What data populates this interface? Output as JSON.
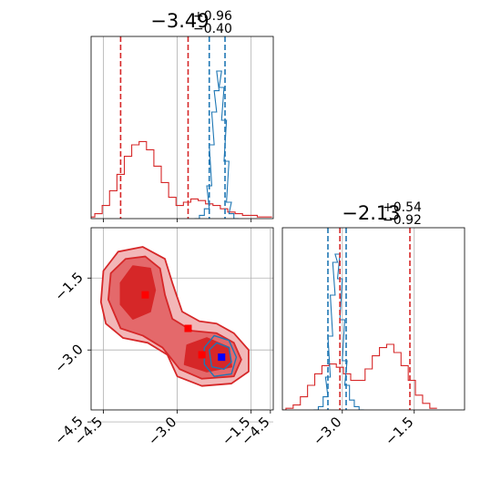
{
  "chart_data": {
    "type": "corner",
    "grid": true,
    "x_range": [
      -4.75,
      -1.05
    ],
    "y_range": [
      -4.25,
      -0.45
    ],
    "ticks": [
      -4.5,
      -3.0,
      -1.5
    ],
    "tick_labels": [
      "−4.5",
      "−3.0",
      "−1.5"
    ],
    "top_panel": {
      "title": {
        "main": "−3.49",
        "sup": "+0.96",
        "sub": "−0.40"
      },
      "red_lines": [
        -4.15,
        -2.78
      ],
      "blue_lines": [
        -2.35,
        -2.03
      ],
      "red_series": {
        "x": [
          -4.75,
          -4.6,
          -4.45,
          -4.3,
          -4.15,
          -4.0,
          -3.85,
          -3.7,
          -3.55,
          -3.4,
          -3.25,
          -3.1,
          -2.95,
          -2.8,
          -2.65,
          -2.5,
          -2.35,
          -2.2,
          -2.05,
          -1.9,
          -1.75,
          -1.6,
          -1.45,
          -1.3,
          -1.15
        ],
        "values": [
          0.01,
          0.03,
          0.08,
          0.17,
          0.27,
          0.38,
          0.45,
          0.47,
          0.42,
          0.32,
          0.22,
          0.13,
          0.08,
          0.1,
          0.12,
          0.11,
          0.09,
          0.08,
          0.06,
          0.04,
          0.03,
          0.02,
          0.02,
          0.01,
          0.01
        ]
      },
      "blue_series": {
        "x": [
          -2.6,
          -2.5,
          -2.4,
          -2.35,
          -2.3,
          -2.25,
          -2.2,
          -2.15,
          -2.1,
          -2.05,
          -2.0,
          -1.95,
          -1.9,
          -1.8
        ],
        "values": [
          0.0,
          0.02,
          0.06,
          0.2,
          0.45,
          0.65,
          0.78,
          0.9,
          0.8,
          0.6,
          0.35,
          0.1,
          0.03,
          0.0
        ]
      }
    },
    "right_panel": {
      "title": {
        "main": "−2.13",
        "sup": "+0.54",
        "sub": "−0.92"
      },
      "red_lines": [
        -3.05,
        -1.59
      ],
      "blue_lines": [
        -3.3,
        -2.92
      ],
      "red_series": {
        "x": [
          -4.25,
          -4.1,
          -3.95,
          -3.8,
          -3.65,
          -3.5,
          -3.35,
          -3.2,
          -3.05,
          -2.9,
          -2.75,
          -2.6,
          -2.45,
          -2.3,
          -2.15,
          -2.0,
          -1.85,
          -1.7,
          -1.55,
          -1.4,
          -1.25,
          -1.1
        ],
        "values": [
          0.0,
          0.01,
          0.03,
          0.08,
          0.15,
          0.22,
          0.27,
          0.28,
          0.26,
          0.22,
          0.18,
          0.18,
          0.25,
          0.33,
          0.38,
          0.4,
          0.35,
          0.27,
          0.18,
          0.09,
          0.04,
          0.01
        ]
      },
      "blue_series": {
        "x": [
          -3.55,
          -3.45,
          -3.35,
          -3.3,
          -3.25,
          -3.2,
          -3.15,
          -3.1,
          -3.05,
          -3.0,
          -2.95,
          -2.9,
          -2.8,
          -2.7,
          -2.6
        ],
        "values": [
          0.0,
          0.02,
          0.08,
          0.2,
          0.45,
          0.7,
          0.9,
          0.95,
          0.8,
          0.55,
          0.3,
          0.15,
          0.06,
          0.02,
          0.0
        ]
      }
    },
    "joint_panel": {
      "red_contours": [
        {
          "level": "outer",
          "points": [
            [
              -4.55,
              -2.0
            ],
            [
              -4.5,
              -1.35
            ],
            [
              -4.2,
              -0.95
            ],
            [
              -3.7,
              -0.85
            ],
            [
              -3.25,
              -1.1
            ],
            [
              -3.1,
              -1.6
            ],
            [
              -2.9,
              -2.2
            ],
            [
              -2.55,
              -2.4
            ],
            [
              -2.2,
              -2.45
            ],
            [
              -1.85,
              -2.65
            ],
            [
              -1.55,
              -3.0
            ],
            [
              -1.55,
              -3.45
            ],
            [
              -1.9,
              -3.7
            ],
            [
              -2.5,
              -3.75
            ],
            [
              -3.0,
              -3.55
            ],
            [
              -3.2,
              -3.1
            ],
            [
              -3.6,
              -2.85
            ],
            [
              -4.1,
              -2.75
            ],
            [
              -4.45,
              -2.45
            ]
          ]
        },
        {
          "level": "mid",
          "points": [
            [
              -4.4,
              -1.95
            ],
            [
              -4.35,
              -1.4
            ],
            [
              -4.05,
              -1.1
            ],
            [
              -3.65,
              -1.05
            ],
            [
              -3.35,
              -1.3
            ],
            [
              -3.25,
              -1.85
            ],
            [
              -3.1,
              -2.35
            ],
            [
              -2.7,
              -2.6
            ],
            [
              -2.2,
              -2.65
            ],
            [
              -1.85,
              -2.85
            ],
            [
              -1.7,
              -3.2
            ],
            [
              -1.85,
              -3.55
            ],
            [
              -2.5,
              -3.6
            ],
            [
              -2.95,
              -3.4
            ],
            [
              -3.3,
              -2.95
            ],
            [
              -3.7,
              -2.7
            ],
            [
              -4.15,
              -2.55
            ]
          ]
        },
        {
          "level": "inner",
          "points": [
            [
              -4.15,
              -1.6
            ],
            [
              -3.9,
              -1.25
            ],
            [
              -3.55,
              -1.3
            ],
            [
              -3.45,
              -1.75
            ],
            [
              -3.55,
              -2.2
            ],
            [
              -3.9,
              -2.35
            ],
            [
              -4.15,
              -2.05
            ]
          ]
        },
        {
          "level": "inner",
          "points": [
            [
              -2.8,
              -2.9
            ],
            [
              -2.4,
              -2.75
            ],
            [
              -1.95,
              -2.95
            ],
            [
              -1.9,
              -3.35
            ],
            [
              -2.4,
              -3.45
            ],
            [
              -2.85,
              -3.3
            ]
          ]
        }
      ],
      "blue_contours": [
        {
          "level": "outer",
          "points": [
            [
              -2.45,
              -2.95
            ],
            [
              -2.25,
              -2.7
            ],
            [
              -1.95,
              -2.8
            ],
            [
              -1.8,
              -3.15
            ],
            [
              -1.9,
              -3.5
            ],
            [
              -2.25,
              -3.55
            ],
            [
              -2.45,
              -3.3
            ]
          ]
        },
        {
          "level": "mid",
          "points": [
            [
              -2.35,
              -3.0
            ],
            [
              -2.2,
              -2.85
            ],
            [
              -1.95,
              -2.95
            ],
            [
              -1.9,
              -3.25
            ],
            [
              -2.05,
              -3.4
            ],
            [
              -2.3,
              -3.35
            ]
          ]
        }
      ],
      "red_markers": [
        [
          -3.65,
          -1.85
        ],
        [
          -2.78,
          -2.55
        ],
        [
          -2.5,
          -3.1
        ],
        [
          -2.1,
          -3.15
        ]
      ],
      "blue_markers": [
        [
          -2.1,
          -3.15
        ]
      ],
      "colors": {
        "red": "#d62728",
        "red_fill_outer": "#f2b7b8",
        "red_fill_mid": "#e4696b",
        "red_fill_inner": "#d62728",
        "blue": "#1f77b4",
        "blue_marker": "#0000ff",
        "grid": "#b0b0b0"
      }
    }
  }
}
